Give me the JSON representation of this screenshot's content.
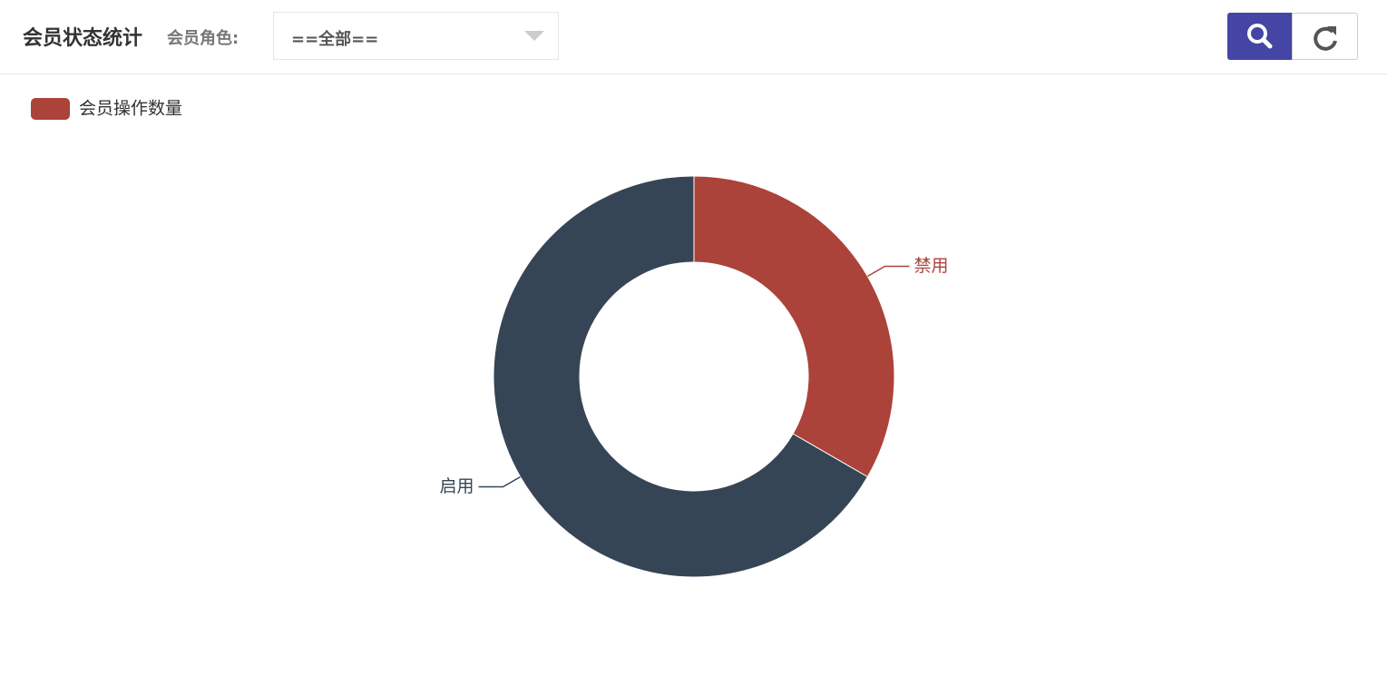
{
  "header": {
    "title": "会员状态统计",
    "role_label": "会员角色:",
    "role_select": "==全部=="
  },
  "chart_data": {
    "type": "pie",
    "categories": [
      "禁用",
      "启用"
    ],
    "series": [
      {
        "name": "会员操作数量",
        "values": [
          1,
          2
        ]
      }
    ],
    "colors": [
      "#ab433b",
      "#364555"
    ]
  }
}
